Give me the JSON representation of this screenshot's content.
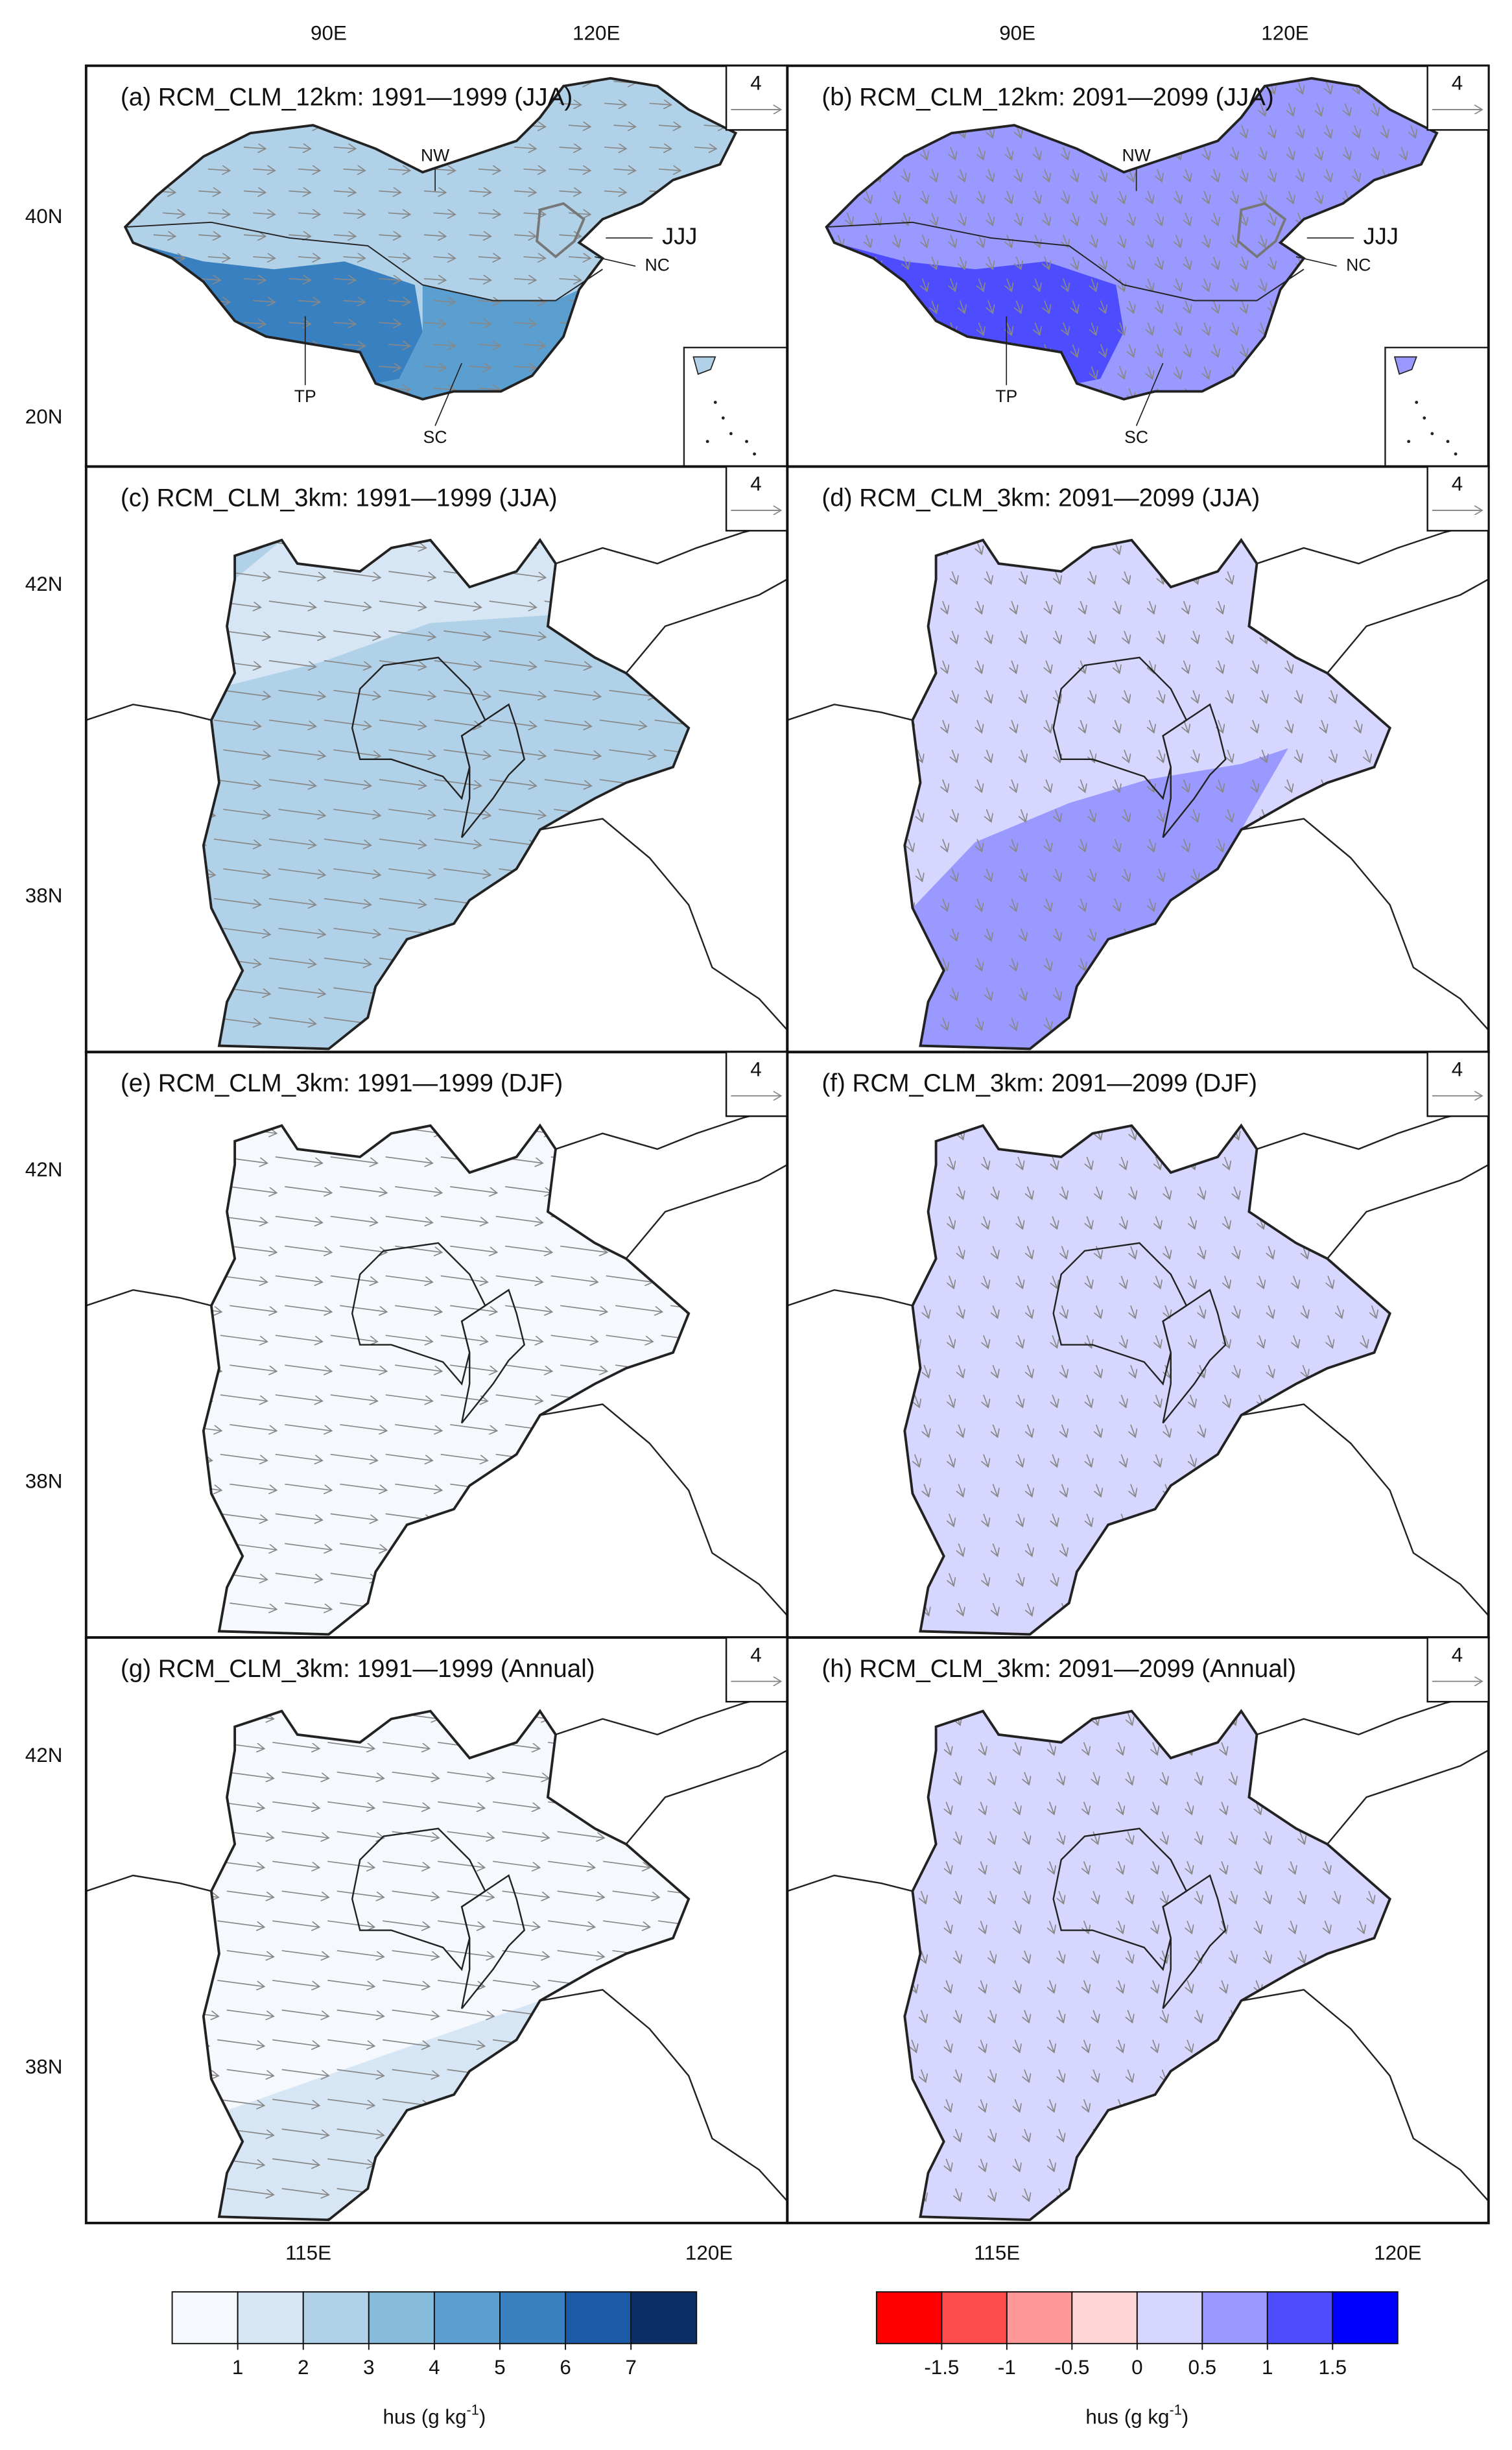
{
  "panels": [
    {
      "title": "(a) RCM_CLM_12km: 1991—1999 (JJA)",
      "vector_ref": 4
    },
    {
      "title": "(b) RCM_CLM_12km: 2091—2099 (JJA)",
      "vector_ref": 4
    },
    {
      "title": "(c) RCM_CLM_3km: 1991—1999 (JJA)",
      "vector_ref": 4
    },
    {
      "title": "(d) RCM_CLM_3km: 2091—2099 (JJA)",
      "vector_ref": 4
    },
    {
      "title": "(e) RCM_CLM_3km: 1991—1999 (DJF)",
      "vector_ref": 4
    },
    {
      "title": "(f) RCM_CLM_3km: 2091—2099 (DJF)",
      "vector_ref": 4
    },
    {
      "title": "(g) RCM_CLM_3km: 1991—1999 (Annual)",
      "vector_ref": 4
    },
    {
      "title": "(h) RCM_CLM_3km: 2091—2099 (Annual)",
      "vector_ref": 4
    }
  ],
  "top_lon_labels": [
    "90E",
    "120E"
  ],
  "bottom_lon_labels": [
    "115E",
    "120E"
  ],
  "lat_labels_12km": [
    "40N",
    "20N"
  ],
  "lat_labels_3km": [
    "42N",
    "38N"
  ],
  "region_labels": [
    "NW",
    "JJJ",
    "NC",
    "TP",
    "SC"
  ],
  "colorbars": [
    {
      "label_main": "hus (g kg",
      "label_sup": "-1",
      "label_end": ")",
      "colors": [
        "#f5f9fe",
        "#d7e6f4",
        "#b0d1e8",
        "#86bbdc",
        "#5b9ed0",
        "#3880c0",
        "#1a5aa6",
        "#0b3068"
      ],
      "ticks": [
        1,
        2,
        3,
        4,
        5,
        6,
        7
      ]
    },
    {
      "label_main": "hus (g kg",
      "label_sup": "-1",
      "label_end": ")",
      "colors": [
        "#ff0000",
        "#ff4d4d",
        "#ff9999",
        "#ffd6d6",
        "#d6d6ff",
        "#9999ff",
        "#4d4dff",
        "#0000ff"
      ],
      "ticks": [
        -1.5,
        -1,
        -0.5,
        0,
        0.5,
        1,
        1.5
      ]
    }
  ]
}
